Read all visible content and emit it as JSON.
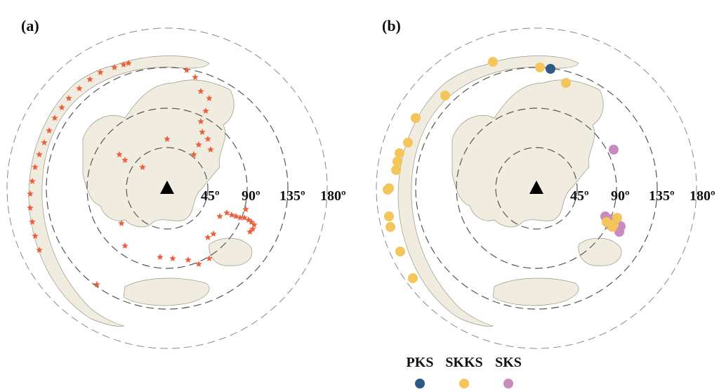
{
  "panels": [
    {
      "id": "a",
      "label": "(a)",
      "ring_labels": [
        "45º",
        "90º",
        "135º",
        "180º"
      ],
      "marker": "star",
      "event_color": "#e8603c"
    },
    {
      "id": "b",
      "label": "(b)",
      "ring_labels": [
        "45º",
        "90º",
        "135º",
        "180º"
      ],
      "marker": "circle"
    }
  ],
  "legend": {
    "items": [
      {
        "label": "PKS",
        "color": "#2c5a85"
      },
      {
        "label": "SKKS",
        "color": "#f4c55a"
      },
      {
        "label": "SKS",
        "color": "#c98bbd"
      }
    ]
  },
  "colors": {
    "land": "#f1ece0",
    "station": "#000000",
    "rings": "#555555"
  },
  "station_icon": "triangle-icon"
}
